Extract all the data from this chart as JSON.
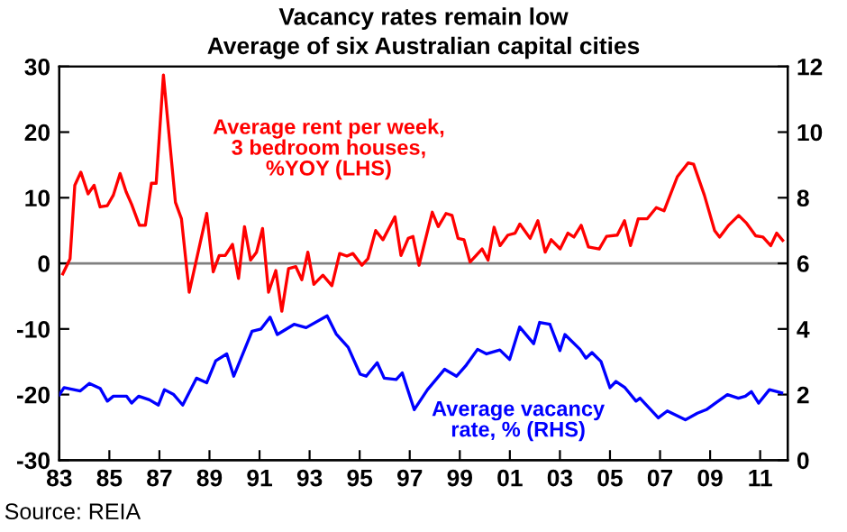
{
  "chart_data": {
    "type": "line",
    "title": "Vacancy rates remain low",
    "subtitle": "Average of six Australian capital cities",
    "series": [
      {
        "name": "Average rent per week,\n3 bedroom houses,\n%YOY (LHS)",
        "color": "#ff0000",
        "axis": "y",
        "x": [
          1983.14,
          1983.43,
          1983.62,
          1983.86,
          1984.15,
          1984.39,
          1984.63,
          1984.92,
          1985.16,
          1985.43,
          1985.67,
          1985.89,
          1986.2,
          1986.44,
          1986.68,
          1986.87,
          1987.16,
          1987.64,
          1987.88,
          1988.19,
          1988.89,
          1989.15,
          1989.39,
          1989.63,
          1989.92,
          1990.16,
          1990.4,
          1990.64,
          1990.88,
          1991.12,
          1991.36,
          1991.65,
          1991.89,
          1992.16,
          1992.45,
          1992.69,
          1992.93,
          1993.17,
          1993.53,
          1993.89,
          1994.2,
          1994.49,
          1994.73,
          1995.09,
          1995.33,
          1995.64,
          1995.93,
          1996.41,
          1996.65,
          1996.94,
          1997.13,
          1997.37,
          1997.9,
          1998.14,
          1998.45,
          1998.69,
          1998.93,
          1999.17,
          1999.41,
          1999.89,
          2000.13,
          2000.37,
          2000.61,
          2000.92,
          2001.21,
          2001.4,
          2001.81,
          2002.12,
          2002.41,
          2002.65,
          2003.01,
          2003.32,
          2003.56,
          2003.85,
          2004.14,
          2004.57,
          2004.86,
          2005.29,
          2005.58,
          2005.82,
          2006.13,
          2006.49,
          2006.85,
          2007.16,
          2007.69,
          2008.12,
          2008.34,
          2008.77,
          2009.18,
          2009.38,
          2009.74,
          2010.14,
          2010.46,
          2010.82,
          2011.11,
          2011.42,
          2011.66,
          2011.9
        ],
        "values": [
          -1.6,
          0.7,
          11.9,
          13.9,
          10.6,
          11.9,
          8.6,
          8.8,
          10.4,
          13.7,
          10.9,
          9.0,
          5.8,
          5.8,
          12.2,
          12.2,
          28.7,
          9.3,
          6.8,
          -4.4,
          7.6,
          -1.3,
          1.2,
          1.2,
          2.9,
          -2.3,
          5.6,
          0.5,
          1.7,
          5.3,
          -4.4,
          -1.1,
          -7.3,
          -0.8,
          -0.5,
          -2.5,
          1.7,
          -3.2,
          -1.8,
          -3.4,
          1.5,
          1.1,
          1.5,
          -0.3,
          0.7,
          5.0,
          3.6,
          7.1,
          1.2,
          3.8,
          4.1,
          -0.3,
          7.8,
          5.6,
          7.6,
          7.3,
          3.8,
          3.6,
          0.2,
          2.2,
          0.5,
          5.5,
          2.7,
          4.3,
          4.6,
          6.0,
          3.8,
          6.5,
          1.7,
          3.6,
          2.2,
          4.6,
          4.0,
          5.8,
          2.5,
          2.2,
          4.1,
          4.3,
          6.5,
          2.7,
          6.8,
          6.8,
          8.5,
          8.0,
          13.2,
          15.3,
          15.1,
          10.4,
          5.0,
          4.0,
          5.8,
          7.3,
          6.1,
          4.2,
          4.0,
          2.7,
          4.6,
          3.5
        ]
      },
      {
        "name": "Average vacancy\nrate, % (RHS)",
        "color": "#0000ff",
        "axis": "y2",
        "x": [
          1983.0,
          1983.19,
          1983.84,
          1984.2,
          1984.63,
          1984.92,
          1985.16,
          1985.69,
          1985.89,
          1986.17,
          1986.6,
          1986.96,
          1987.2,
          1987.57,
          1987.93,
          1988.48,
          1988.89,
          1989.25,
          1989.69,
          1989.97,
          1990.7,
          1991.06,
          1991.42,
          1991.71,
          1992.38,
          1992.86,
          1993.7,
          1994.06,
          1994.54,
          1995.02,
          1995.26,
          1995.7,
          1995.98,
          1996.46,
          1996.7,
          1997.18,
          1997.71,
          1998.39,
          1998.87,
          1999.23,
          1999.71,
          2000.07,
          2000.6,
          2000.99,
          2001.39,
          2001.95,
          2002.19,
          2002.6,
          2003.0,
          2003.2,
          2003.8,
          2004.04,
          2004.28,
          2004.64,
          2005.0,
          2005.24,
          2005.6,
          2006.04,
          2006.2,
          2006.93,
          2007.29,
          2008.01,
          2008.49,
          2008.85,
          2009.21,
          2009.69,
          2010.13,
          2010.41,
          2010.65,
          2010.94,
          2011.37,
          2011.86
        ],
        "values": [
          1.99,
          2.21,
          2.11,
          2.34,
          2.19,
          1.8,
          1.95,
          1.95,
          1.74,
          1.95,
          1.84,
          1.68,
          2.15,
          2.0,
          1.68,
          2.5,
          2.36,
          3.03,
          3.24,
          2.56,
          3.93,
          4.0,
          4.36,
          3.83,
          4.14,
          4.04,
          4.4,
          3.85,
          3.44,
          2.62,
          2.56,
          2.97,
          2.5,
          2.46,
          2.66,
          1.54,
          2.15,
          2.77,
          2.56,
          2.87,
          3.38,
          3.24,
          3.36,
          3.07,
          4.06,
          3.55,
          4.2,
          4.14,
          3.34,
          3.83,
          3.38,
          3.11,
          3.28,
          3.01,
          2.21,
          2.4,
          2.21,
          1.8,
          1.89,
          1.29,
          1.5,
          1.23,
          1.43,
          1.54,
          1.74,
          2.0,
          1.89,
          1.95,
          2.09,
          1.74,
          2.15,
          2.05
        ]
      }
    ],
    "xlim": [
      1983,
      2012.1
    ],
    "xticks": [
      {
        "value": 1983,
        "label": "83"
      },
      {
        "value": 1985,
        "label": "85"
      },
      {
        "value": 1987,
        "label": "87"
      },
      {
        "value": 1989,
        "label": "89"
      },
      {
        "value": 1991,
        "label": "91"
      },
      {
        "value": 1993,
        "label": "93"
      },
      {
        "value": 1995,
        "label": "95"
      },
      {
        "value": 1997,
        "label": "97"
      },
      {
        "value": 1999,
        "label": "99"
      },
      {
        "value": 2001,
        "label": "01"
      },
      {
        "value": 2003,
        "label": "03"
      },
      {
        "value": 2005,
        "label": "05"
      },
      {
        "value": 2007,
        "label": "07"
      },
      {
        "value": 2009,
        "label": "09"
      },
      {
        "value": 2011,
        "label": "11"
      }
    ],
    "ylim": [
      -30,
      30
    ],
    "yticks": [
      -30,
      -20,
      -10,
      0,
      10,
      20,
      30
    ],
    "y2lim": [
      0,
      12
    ],
    "y2ticks": [
      0,
      2,
      4,
      6,
      8,
      10,
      12
    ],
    "ref_lines": [
      {
        "axis": "y",
        "value": 0,
        "color": "#808080"
      }
    ],
    "grid": false,
    "legend": false,
    "marker": "none",
    "line_style": "solid",
    "annotations": [
      "Source: REIA"
    ]
  }
}
